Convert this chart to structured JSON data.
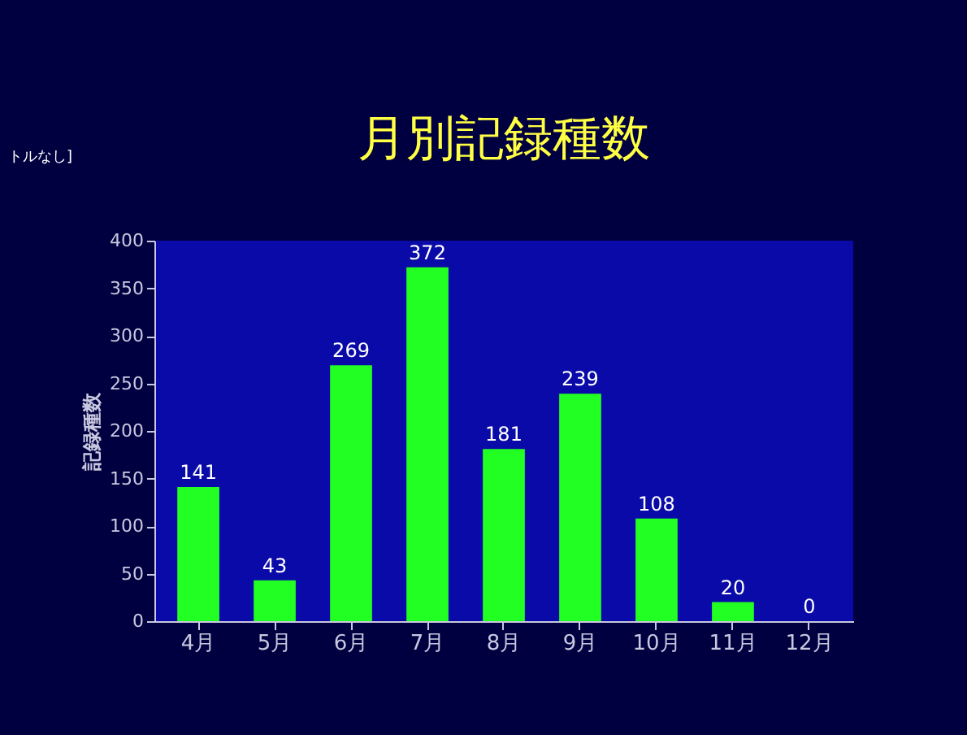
{
  "chart_data": {
    "type": "bar",
    "title": "月別記録種数",
    "ylabel": "記録種数",
    "categories": [
      "4月",
      "5月",
      "6月",
      "7月",
      "8月",
      "9月",
      "10月",
      "11月",
      "12月"
    ],
    "values": [
      141,
      43,
      269,
      372,
      181,
      239,
      108,
      20,
      0
    ],
    "color": "#22ff22",
    "ylim": [
      0,
      400
    ],
    "yticks": [
      0,
      50,
      100,
      150,
      200,
      250,
      300,
      350,
      400
    ],
    "grid": false,
    "data_labels": true,
    "annotations": [
      "トルなし]"
    ]
  }
}
